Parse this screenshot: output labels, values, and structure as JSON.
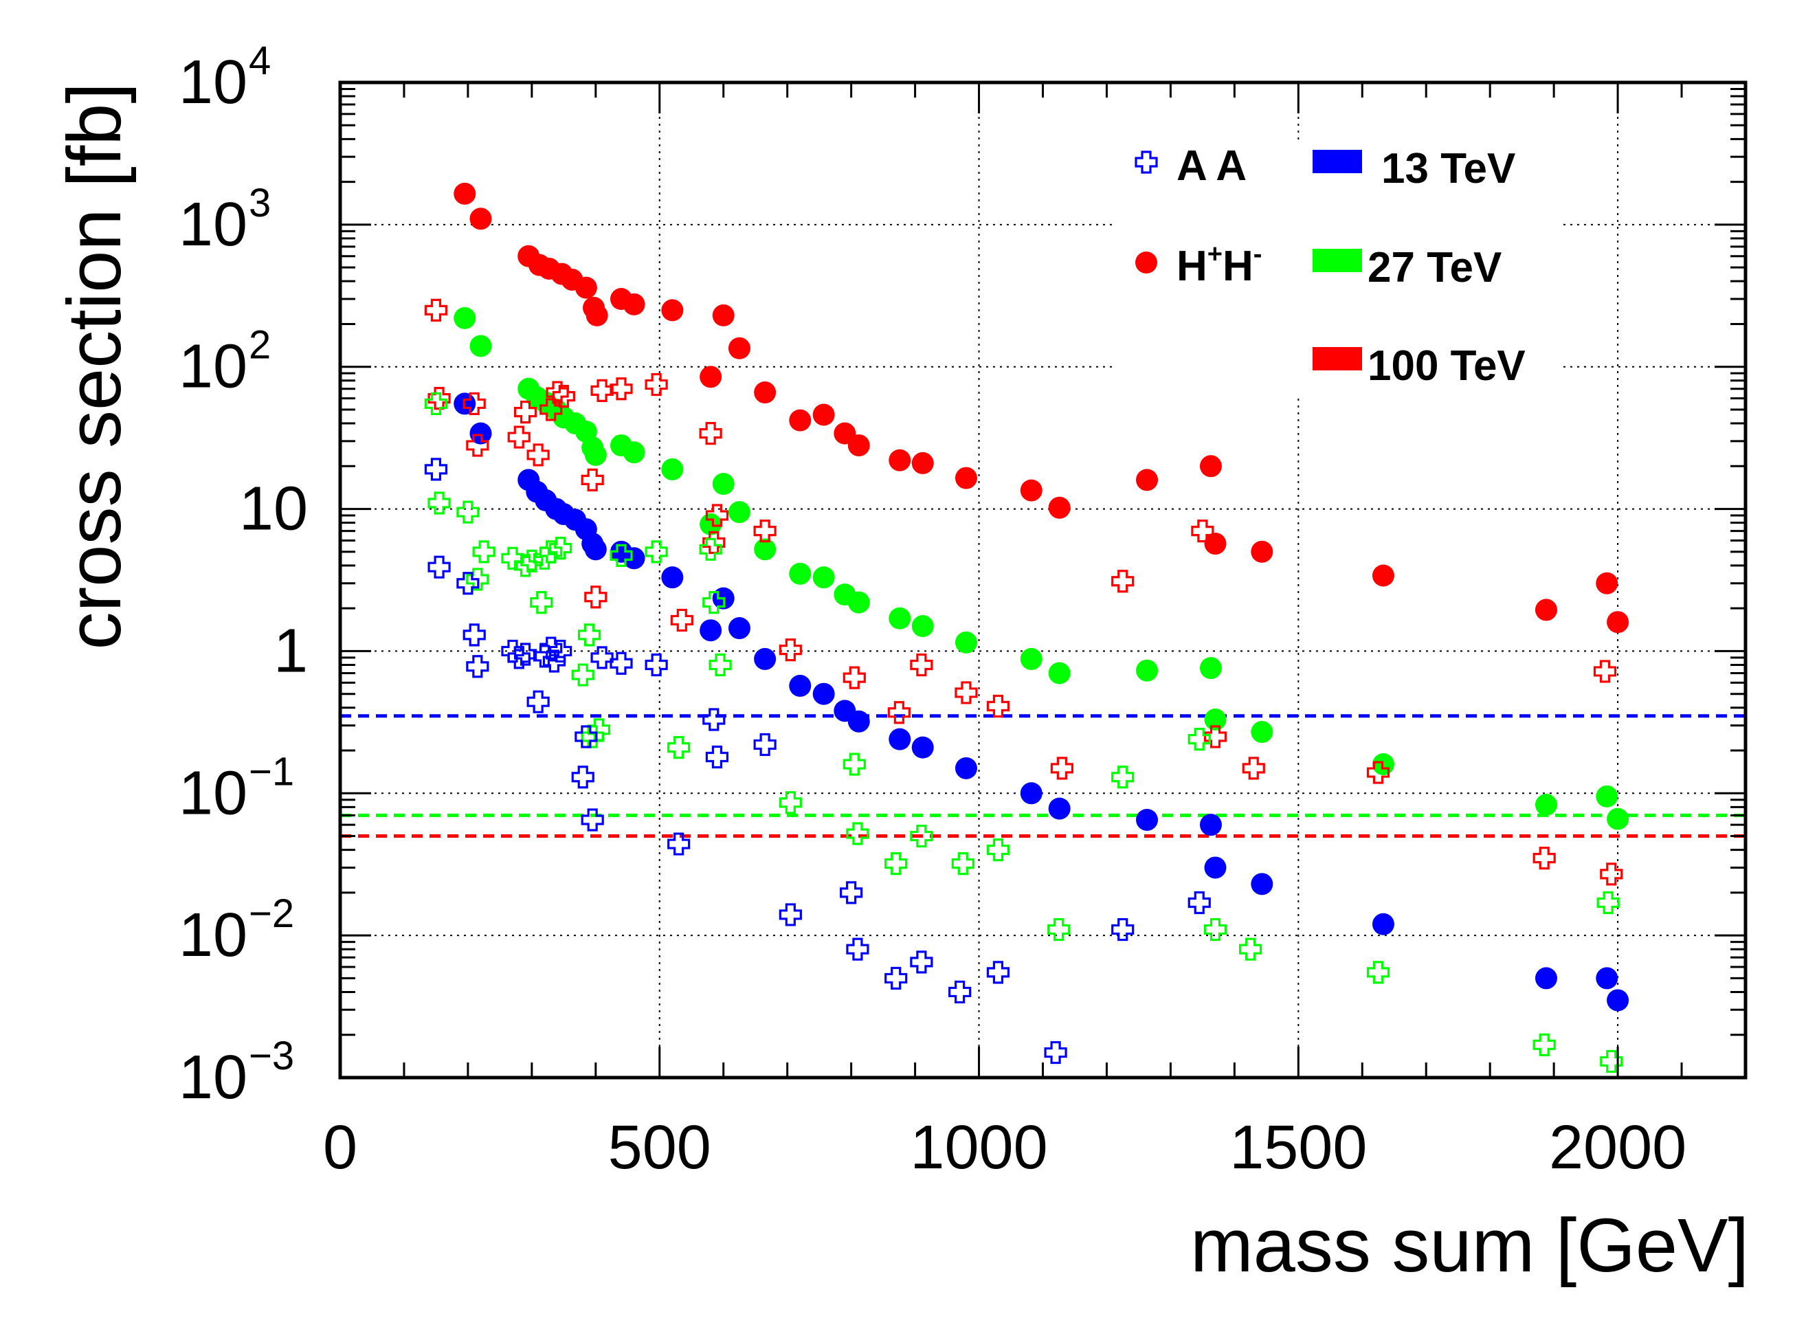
{
  "chart_data": {
    "type": "scatter",
    "title": "",
    "xlabel": "mass sum [GeV]",
    "ylabel": "cross section [fb]",
    "xlim": [
      0,
      2200
    ],
    "ylim": [
      0.001,
      10000
    ],
    "yscale": "log",
    "grid": true,
    "x_tick_labels": [
      "0",
      "500",
      "1000",
      "1500",
      "2000"
    ],
    "x_ticks": [
      0,
      500,
      1000,
      1500,
      2000
    ],
    "y_tick_labels": [
      {
        "base": "10",
        "exp": "−3",
        "value": 0.001
      },
      {
        "base": "10",
        "exp": "−2",
        "value": 0.01
      },
      {
        "base": "10",
        "exp": "−1",
        "value": 0.1
      },
      {
        "base": "1",
        "exp": "",
        "value": 1
      },
      {
        "base": "10",
        "exp": "",
        "value": 10
      },
      {
        "base": "10",
        "exp": "2",
        "value": 100
      },
      {
        "base": "10",
        "exp": "3",
        "value": 1000
      },
      {
        "base": "10",
        "exp": "4",
        "value": 10000
      }
    ],
    "legend": {
      "placement": "top-right",
      "markers": [
        {
          "label": "A A",
          "marker": "open-cross",
          "color": "#0000ff"
        },
        {
          "label": "H",
          "sup1": "+",
          "label2": "H",
          "sup2": "-",
          "marker": "filled-circle",
          "color": "#ff0000"
        }
      ],
      "energies": [
        {
          "label": "13 TeV",
          "color": "#0000ff"
        },
        {
          "label": "27 TeV",
          "color": "#00ff00"
        },
        {
          "label": "100 TeV",
          "color": "#ff0000"
        }
      ]
    },
    "reference_lines": [
      {
        "name": "13 TeV",
        "value": 0.35,
        "color": "#0000ff",
        "style": "dashed"
      },
      {
        "name": "27 TeV",
        "value": 0.07,
        "color": "#00ff00",
        "style": "dashed"
      },
      {
        "name": "100 TeV",
        "value": 0.05,
        "color": "#ff0000",
        "style": "dashed"
      }
    ],
    "series": [
      {
        "name": "H+H- 100 TeV",
        "color": "#ff0000",
        "marker": "filled-circle",
        "x": [
          195,
          220,
          295,
          312,
          327,
          347,
          363,
          385,
          397,
          402,
          440,
          460,
          520,
          580,
          600,
          625,
          665,
          720,
          757,
          790,
          812,
          876,
          912,
          980,
          1082,
          1126,
          1263,
          1363,
          1370,
          1443,
          1633,
          1888,
          1983,
          2000
        ],
        "y": [
          1650,
          1100,
          600,
          520,
          490,
          450,
          410,
          360,
          260,
          230,
          300,
          275,
          250,
          85,
          230,
          135,
          66,
          42,
          46,
          34,
          28,
          22,
          21,
          16.5,
          13.5,
          10.2,
          16,
          20,
          5.7,
          5,
          3.4,
          1.95,
          3,
          1.6
        ]
      },
      {
        "name": "H+H- 27 TeV",
        "color": "#00ff00",
        "marker": "filled-circle",
        "x": [
          195,
          220,
          295,
          308,
          322,
          338,
          350,
          368,
          385,
          395,
          400,
          440,
          460,
          520,
          580,
          600,
          625,
          665,
          720,
          757,
          790,
          812,
          876,
          912,
          980,
          1082,
          1126,
          1263,
          1363,
          1370,
          1443,
          1633,
          1888,
          1983,
          2000
        ],
        "y": [
          220,
          140,
          70,
          61,
          56,
          50,
          44,
          40,
          35,
          27,
          24,
          28,
          25,
          19,
          7.8,
          15,
          9.5,
          5.2,
          3.5,
          3.3,
          2.5,
          2.2,
          1.7,
          1.5,
          1.15,
          0.88,
          0.7,
          0.73,
          0.76,
          0.33,
          0.27,
          0.16,
          0.083,
          0.095,
          0.066
        ]
      },
      {
        "name": "H+H- 13 TeV",
        "color": "#0000ff",
        "marker": "filled-circle",
        "x": [
          195,
          220,
          295,
          308,
          322,
          338,
          350,
          368,
          385,
          395,
          400,
          440,
          460,
          520,
          580,
          600,
          625,
          665,
          720,
          757,
          790,
          812,
          876,
          912,
          980,
          1082,
          1126,
          1263,
          1363,
          1370,
          1443,
          1633,
          1888,
          1983,
          2000
        ],
        "y": [
          55,
          34,
          16,
          13.2,
          11.5,
          10,
          9.2,
          8.4,
          7.2,
          5.7,
          5.2,
          5,
          4.5,
          3.3,
          1.4,
          2.35,
          1.45,
          0.88,
          0.57,
          0.5,
          0.38,
          0.32,
          0.24,
          0.21,
          0.15,
          0.1,
          0.078,
          0.065,
          0.06,
          0.03,
          0.023,
          0.012,
          0.005,
          0.005,
          0.0035
        ]
      },
      {
        "name": "A A 100 TeV",
        "color": "#ff0000",
        "marker": "open-cross",
        "x": [
          150,
          155,
          210,
          215,
          280,
          290,
          310,
          330,
          340,
          350,
          395,
          400,
          410,
          440,
          495,
          535,
          580,
          585,
          590,
          665,
          705,
          805,
          875,
          910,
          980,
          1030,
          1130,
          1225,
          1350,
          1370,
          1430,
          1625,
          1885,
          1980,
          1990
        ],
        "y": [
          250,
          60,
          55,
          28,
          32,
          48,
          24,
          50,
          66,
          62,
          16,
          2.4,
          68,
          70,
          75,
          1.65,
          34,
          5.8,
          9,
          7,
          1.02,
          0.65,
          0.37,
          0.8,
          0.51,
          0.41,
          0.15,
          3.1,
          7,
          0.25,
          0.15,
          0.14,
          0.035,
          0.72,
          0.027
        ]
      },
      {
        "name": "A A 27 TeV",
        "color": "#00ff00",
        "marker": "open-cross",
        "x": [
          150,
          155,
          200,
          215,
          225,
          270,
          290,
          300,
          315,
          320,
          330,
          345,
          380,
          390,
          395,
          405,
          440,
          495,
          530,
          580,
          585,
          595,
          705,
          805,
          810,
          870,
          910,
          975,
          1030,
          1125,
          1225,
          1345,
          1370,
          1425,
          1625,
          1885,
          1985,
          1990
        ],
        "y": [
          55,
          11,
          9.5,
          3.2,
          5,
          4.5,
          4,
          4.3,
          2.2,
          4.5,
          5,
          5.3,
          0.68,
          1.3,
          0.25,
          0.28,
          4.7,
          5,
          0.21,
          5.2,
          2.2,
          0.8,
          0.086,
          0.16,
          0.052,
          0.032,
          0.05,
          0.032,
          0.04,
          0.011,
          0.13,
          0.24,
          0.011,
          0.008,
          0.0055,
          0.0017,
          0.017,
          0.0013
        ]
      },
      {
        "name": "A A 13 TeV",
        "color": "#0000ff",
        "marker": "open-cross",
        "x": [
          150,
          155,
          200,
          210,
          215,
          270,
          280,
          290,
          310,
          320,
          330,
          335,
          345,
          380,
          385,
          395,
          410,
          440,
          495,
          530,
          585,
          590,
          665,
          705,
          800,
          810,
          870,
          910,
          970,
          1030,
          1120,
          1225,
          1345
        ],
        "y": [
          19,
          3.9,
          3,
          1.3,
          0.78,
          1,
          0.9,
          0.95,
          0.44,
          0.92,
          1.05,
          0.85,
          1,
          0.13,
          0.25,
          0.065,
          0.9,
          0.82,
          0.8,
          0.044,
          0.33,
          0.18,
          0.22,
          0.014,
          0.02,
          0.008,
          0.005,
          0.0065,
          0.004,
          0.0055,
          0.0015,
          0.011,
          0.017
        ]
      }
    ]
  }
}
